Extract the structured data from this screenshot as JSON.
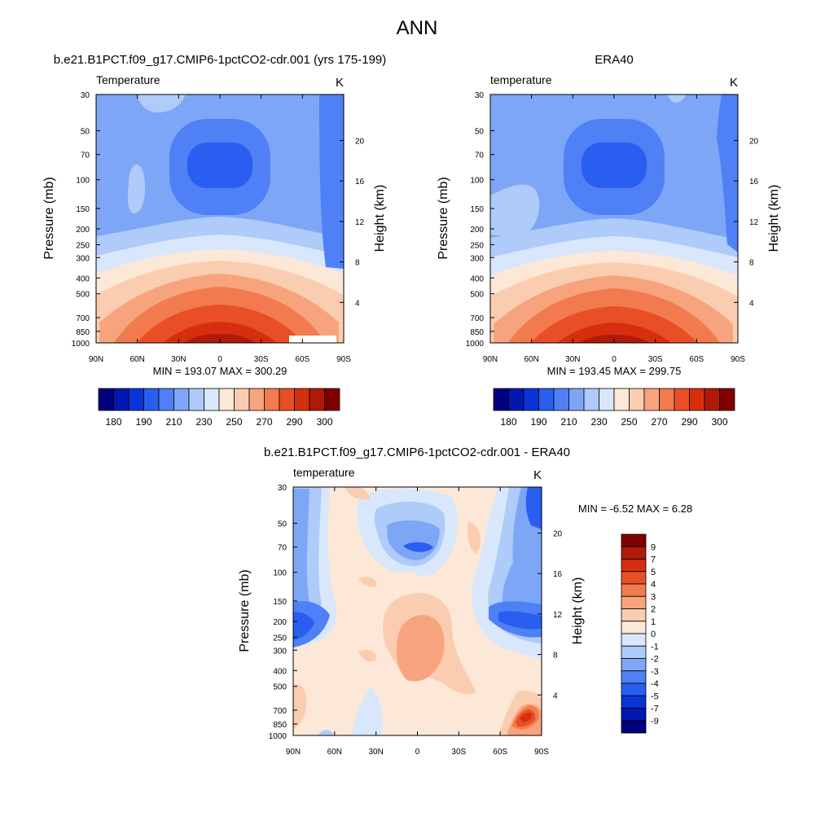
{
  "figure_title": "ANN",
  "colors": {
    "abs_scale": [
      "#00007f",
      "#0018b0",
      "#0a34d8",
      "#2a5ef0",
      "#4f80f5",
      "#7ea6f7",
      "#aecbf9",
      "#d8e7fb",
      "#fde8d8",
      "#fbcdb0",
      "#f7a47e",
      "#f27a4f",
      "#e84f26",
      "#d52f10",
      "#b01a08",
      "#7f0000"
    ],
    "diff_scale": [
      "#00007f",
      "#0018b0",
      "#0a34d8",
      "#2a5ef0",
      "#4f80f5",
      "#7ea6f7",
      "#aecbf9",
      "#d8e7fb",
      "#fde8d8",
      "#fbcdb0",
      "#f7a47e",
      "#f27a4f",
      "#e84f26",
      "#d52f10",
      "#b01a08",
      "#7f0000"
    ]
  },
  "chart_data": [
    {
      "type": "contour",
      "panel_title": "b.e21.B1PCT.f09_g17.CMIP6-1pctCO2-cdr.001 (yrs 175-199)",
      "left_label": "Temperature",
      "units": "K",
      "xlabel": "",
      "ylabel": "Pressure (mb)",
      "y2label": "Height (km)",
      "x_ticks": [
        "90N",
        "60N",
        "30N",
        "0",
        "30S",
        "60S",
        "90S"
      ],
      "y_ticks": [
        "30",
        "50",
        "70",
        "100",
        "150",
        "200",
        "250",
        "300",
        "400",
        "500",
        "700",
        "850",
        "1000"
      ],
      "y2_ticks": [
        "20",
        "16",
        "12",
        "8",
        "4"
      ],
      "stats": "MIN = 193.07   MAX = 300.29",
      "colorbar_labels": [
        "180",
        "190",
        "210",
        "230",
        "250",
        "270",
        "290",
        "300"
      ]
    },
    {
      "type": "contour",
      "panel_title": "ERA40",
      "left_label": "temperature",
      "units": "K",
      "xlabel": "",
      "ylabel": "Pressure (mb)",
      "y2label": "Height (km)",
      "x_ticks": [
        "90N",
        "60N",
        "30N",
        "0",
        "30S",
        "60S",
        "90S"
      ],
      "y_ticks": [
        "30",
        "50",
        "70",
        "100",
        "150",
        "200",
        "250",
        "300",
        "400",
        "500",
        "700",
        "850",
        "1000"
      ],
      "y2_ticks": [
        "20",
        "16",
        "12",
        "8",
        "4"
      ],
      "stats": "MIN = 193.45   MAX = 299.75",
      "colorbar_labels": [
        "180",
        "190",
        "210",
        "230",
        "250",
        "270",
        "290",
        "300"
      ]
    },
    {
      "type": "contour",
      "panel_title": "b.e21.B1PCT.f09_g17.CMIP6-1pctCO2-cdr.001 - ERA40",
      "left_label": "temperature",
      "units": "K",
      "xlabel": "",
      "ylabel": "Pressure (mb)",
      "y2label": "Height (km)",
      "x_ticks": [
        "90N",
        "60N",
        "30N",
        "0",
        "30S",
        "60S",
        "90S"
      ],
      "y_ticks": [
        "30",
        "50",
        "70",
        "100",
        "150",
        "200",
        "250",
        "300",
        "400",
        "500",
        "700",
        "850",
        "1000"
      ],
      "y2_ticks": [
        "20",
        "16",
        "12",
        "8",
        "4"
      ],
      "stats": "MIN =  -6.52   MAX =    6.28",
      "colorbar_labels": [
        "9",
        "7",
        "5",
        "4",
        "3",
        "2",
        "1",
        "0",
        "-1",
        "-2",
        "-3",
        "-4",
        "-5",
        "-7",
        "-9"
      ]
    }
  ]
}
